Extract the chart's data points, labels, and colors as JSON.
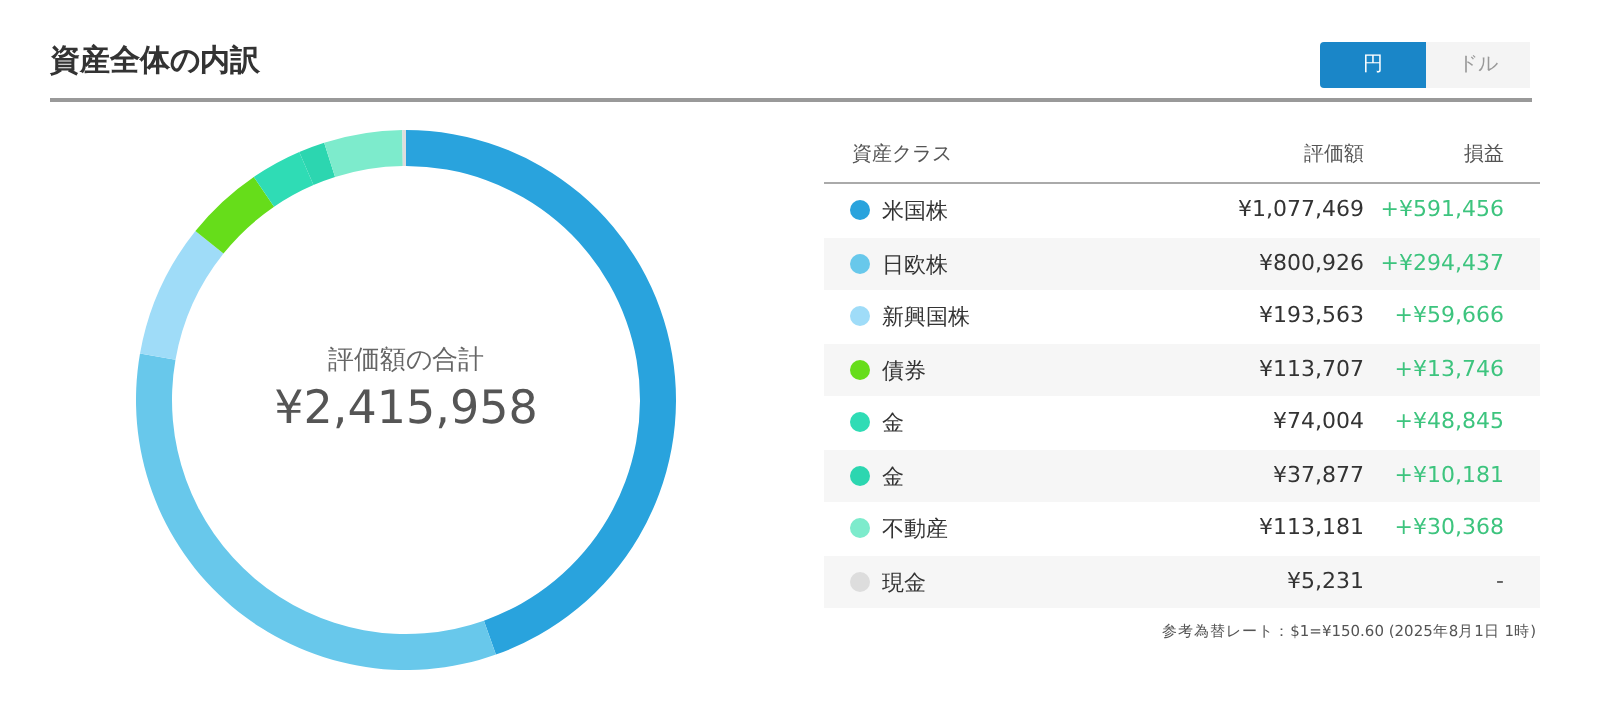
{
  "chart_data": {
    "type": "donut",
    "title": "資産全体の内訳",
    "categories": [
      "米国株",
      "日欧株",
      "新興国株",
      "債券",
      "金",
      "金",
      "不動産",
      "現金"
    ],
    "values": [
      1077469,
      800926,
      193563,
      113707,
      74004,
      37877,
      113181,
      5231
    ],
    "value_labels": [
      "¥1,077,469",
      "¥800,926",
      "¥193,563",
      "¥113,707",
      "¥74,004",
      "¥37,877",
      "¥113,181",
      "¥5,231"
    ],
    "colors": [
      "#29a3dd",
      "#68c8eb",
      "#9fdcf8",
      "#66dd1a",
      "#2fdcb5",
      "#2cd6b0",
      "#7debcc",
      "#dddddd"
    ],
    "legend": "right",
    "annotations": [
      "評価額の合計",
      "¥2,415,958",
      "資産クラス",
      "評価額",
      "損益",
      "+¥591,456",
      "+¥294,437",
      "+¥59,666",
      "+¥13,746",
      "+¥48,845",
      "+¥10,181",
      "+¥30,368",
      "-",
      "参考為替レート：$1=¥150.60 (2025年8月1日 1時)",
      "円",
      "ドル"
    ]
  }
}
